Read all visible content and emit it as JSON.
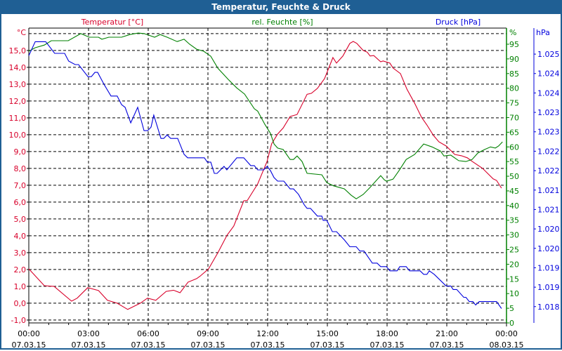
{
  "window": {
    "title": "Temperatur, Feuchte & Druck"
  },
  "colors": {
    "titlebar": "#1f5f94",
    "temperature": "#d8002a",
    "humidity": "#008000",
    "pressure": "#0000dd",
    "grid": "#000000"
  },
  "chart_data": {
    "type": "line",
    "title": "Temperatur, Feuchte & Druck",
    "x": {
      "label": "",
      "range_hours": [
        0,
        24
      ],
      "ticks": [
        {
          "h": 0,
          "time": "00:00",
          "date": "07.03.15"
        },
        {
          "h": 3,
          "time": "03:00",
          "date": "07.03.15"
        },
        {
          "h": 6,
          "time": "06:00",
          "date": "07.03.15"
        },
        {
          "h": 9,
          "time": "09:00",
          "date": "07.03.15"
        },
        {
          "h": 12,
          "time": "12:00",
          "date": "07.03.15"
        },
        {
          "h": 15,
          "time": "15:00",
          "date": "07.03.15"
        },
        {
          "h": 18,
          "time": "18:00",
          "date": "07.03.15"
        },
        {
          "h": 21,
          "time": "21:00",
          "date": "07.03.15"
        },
        {
          "h": 24,
          "time": "00:00",
          "date": "08.03.15"
        }
      ]
    },
    "axes": {
      "temperature": {
        "label": "Temperatur [°C]",
        "unit": "°C",
        "range": [
          -1.17,
          16.33
        ],
        "ticks": [
          {
            "v": -1,
            "t": "-1,0"
          },
          {
            "v": 0,
            "t": "0,0"
          },
          {
            "v": 1,
            "t": "1,0"
          },
          {
            "v": 2,
            "t": "2,0"
          },
          {
            "v": 3,
            "t": "3,0"
          },
          {
            "v": 4,
            "t": "4,0"
          },
          {
            "v": 5,
            "t": "5,0"
          },
          {
            "v": 6,
            "t": "6,0"
          },
          {
            "v": 7,
            "t": "7,0"
          },
          {
            "v": 8,
            "t": "8,0"
          },
          {
            "v": 9,
            "t": "9,0"
          },
          {
            "v": 10,
            "t": "10,0"
          },
          {
            "v": 11,
            "t": "11,0"
          },
          {
            "v": 12,
            "t": "12,0"
          },
          {
            "v": 13,
            "t": "13,0"
          },
          {
            "v": 14,
            "t": "14,0"
          },
          {
            "v": 15,
            "t": "15,0"
          }
        ]
      },
      "humidity": {
        "label": "rel. Feuchte [%]",
        "unit": "%",
        "range": [
          0,
          100.5
        ],
        "ticks": [
          {
            "v": 0,
            "t": "0"
          },
          {
            "v": 5,
            "t": "5"
          },
          {
            "v": 10,
            "t": "10"
          },
          {
            "v": 15,
            "t": "15"
          },
          {
            "v": 20,
            "t": "20"
          },
          {
            "v": 25,
            "t": "25"
          },
          {
            "v": 30,
            "t": "30"
          },
          {
            "v": 35,
            "t": "35"
          },
          {
            "v": 40,
            "t": "40"
          },
          {
            "v": 45,
            "t": "45"
          },
          {
            "v": 50,
            "t": "50"
          },
          {
            "v": 55,
            "t": "55"
          },
          {
            "v": 60,
            "t": "60"
          },
          {
            "v": 65,
            "t": "65"
          },
          {
            "v": 70,
            "t": "70"
          },
          {
            "v": 75,
            "t": "75"
          },
          {
            "v": 80,
            "t": "80"
          },
          {
            "v": 85,
            "t": "85"
          },
          {
            "v": 90,
            "t": "90"
          },
          {
            "v": 95,
            "t": "95"
          }
        ]
      },
      "pressure": {
        "label": "Druck [hPa]",
        "unit": "hPa",
        "range": [
          1.01808,
          1.02567
        ],
        "ticks": [
          {
            "v": 1.0185,
            "t": "1.018"
          },
          {
            "v": 1.019,
            "t": "1.019"
          },
          {
            "v": 1.0195,
            "t": "1.019"
          },
          {
            "v": 1.02,
            "t": "1.020"
          },
          {
            "v": 1.0205,
            "t": "1.020"
          },
          {
            "v": 1.021,
            "t": "1.021"
          },
          {
            "v": 1.0215,
            "t": "1.021"
          },
          {
            "v": 1.022,
            "t": "1.022"
          },
          {
            "v": 1.0225,
            "t": "1.022"
          },
          {
            "v": 1.023,
            "t": "1.023"
          },
          {
            "v": 1.0235,
            "t": "1.023"
          },
          {
            "v": 1.024,
            "t": "1.024"
          },
          {
            "v": 1.0245,
            "t": "1.024"
          },
          {
            "v": 1.025,
            "t": "1.025"
          }
        ]
      }
    },
    "grid": true,
    "series": [
      {
        "name": "Temperatur [°C]",
        "axis": "temperature",
        "color": "#d8002a",
        "points": [
          [
            0,
            2.04
          ],
          [
            0.78,
            1.04
          ],
          [
            1.27,
            1.0
          ],
          [
            2.15,
            0.12
          ],
          [
            2.43,
            0.3
          ],
          [
            2.96,
            0.92
          ],
          [
            3.5,
            0.75
          ],
          [
            3.95,
            0.17
          ],
          [
            4.44,
            0
          ],
          [
            4.97,
            -0.37
          ],
          [
            5.6,
            0
          ],
          [
            5.96,
            0.3
          ],
          [
            6.38,
            0.17
          ],
          [
            6.9,
            0.7
          ],
          [
            7.27,
            0.77
          ],
          [
            7.6,
            0.62
          ],
          [
            8.0,
            1.25
          ],
          [
            8.43,
            1.46
          ],
          [
            8.6,
            1.6
          ],
          [
            9.03,
            2.04
          ],
          [
            9.5,
            3.0
          ],
          [
            9.96,
            4.04
          ],
          [
            10.3,
            4.58
          ],
          [
            10.8,
            6.08
          ],
          [
            10.98,
            6.1
          ],
          [
            11.5,
            7.08
          ],
          [
            11.97,
            8.42
          ],
          [
            12.2,
            9.46
          ],
          [
            12.5,
            10.04
          ],
          [
            12.78,
            10.4
          ],
          [
            13.13,
            11.08
          ],
          [
            13.48,
            11.2
          ],
          [
            13.98,
            12.4
          ],
          [
            14.2,
            12.46
          ],
          [
            14.5,
            12.75
          ],
          [
            14.86,
            13.33
          ],
          [
            15.28,
            14.58
          ],
          [
            15.46,
            14.25
          ],
          [
            15.78,
            14.67
          ],
          [
            16.13,
            15.42
          ],
          [
            16.3,
            15.54
          ],
          [
            16.48,
            15.42
          ],
          [
            16.8,
            15.0
          ],
          [
            17.0,
            14.9
          ],
          [
            17.15,
            14.67
          ],
          [
            17.33,
            14.7
          ],
          [
            17.68,
            14.33
          ],
          [
            17.8,
            14.38
          ],
          [
            18.14,
            14.25
          ],
          [
            18.3,
            13.96
          ],
          [
            18.67,
            13.63
          ],
          [
            19.0,
            12.7
          ],
          [
            19.38,
            11.88
          ],
          [
            19.73,
            11.04
          ],
          [
            20.0,
            10.58
          ],
          [
            20.33,
            9.96
          ],
          [
            20.6,
            9.58
          ],
          [
            20.97,
            9.33
          ],
          [
            21.4,
            8.83
          ],
          [
            21.74,
            8.75
          ],
          [
            22.03,
            8.63
          ],
          [
            22.27,
            8.42
          ],
          [
            22.8,
            8.0
          ],
          [
            23.33,
            7.38
          ],
          [
            23.5,
            7.29
          ],
          [
            23.75,
            6.83
          ]
        ]
      },
      {
        "name": "rel. Feuchte [%]",
        "axis": "humidity",
        "color": "#008000",
        "points": [
          [
            0,
            92.6
          ],
          [
            0.32,
            93.8
          ],
          [
            0.78,
            94.7
          ],
          [
            1.13,
            96.2
          ],
          [
            1.73,
            96.2
          ],
          [
            1.98,
            96.2
          ],
          [
            2.61,
            98.6
          ],
          [
            3.04,
            97.4
          ],
          [
            3.5,
            97.4
          ],
          [
            3.67,
            96.7
          ],
          [
            4.02,
            97.4
          ],
          [
            4.66,
            97.4
          ],
          [
            5.08,
            98.3
          ],
          [
            5.5,
            98.8
          ],
          [
            5.8,
            98.6
          ],
          [
            6.32,
            97.4
          ],
          [
            6.6,
            98.3
          ],
          [
            6.95,
            97.4
          ],
          [
            7.45,
            95.9
          ],
          [
            7.8,
            96.7
          ],
          [
            8.08,
            95.0
          ],
          [
            8.43,
            93.3
          ],
          [
            8.79,
            92.6
          ],
          [
            9.14,
            90.9
          ],
          [
            9.5,
            86.8
          ],
          [
            10.02,
            83.0
          ],
          [
            10.45,
            80.1
          ],
          [
            10.84,
            78.0
          ],
          [
            11.33,
            73.0
          ],
          [
            11.5,
            72.2
          ],
          [
            11.86,
            67.7
          ],
          [
            12.14,
            64.6
          ],
          [
            12.32,
            61.0
          ],
          [
            12.5,
            59.6
          ],
          [
            12.78,
            59.1
          ],
          [
            13.13,
            55.7
          ],
          [
            13.3,
            55.7
          ],
          [
            13.48,
            56.9
          ],
          [
            13.73,
            55.0
          ],
          [
            13.98,
            51.0
          ],
          [
            14.72,
            50.5
          ],
          [
            14.97,
            47.8
          ],
          [
            15.32,
            46.7
          ],
          [
            15.85,
            45.7
          ],
          [
            16.2,
            43.5
          ],
          [
            16.45,
            42.3
          ],
          [
            16.8,
            43.8
          ],
          [
            17.15,
            46.2
          ],
          [
            17.68,
            50.2
          ],
          [
            17.86,
            48.8
          ],
          [
            17.97,
            48.3
          ],
          [
            18.3,
            49.0
          ],
          [
            18.6,
            51.9
          ],
          [
            18.96,
            55.7
          ],
          [
            19.38,
            57.4
          ],
          [
            19.84,
            61.0
          ],
          [
            20.26,
            60.0
          ],
          [
            20.68,
            58.6
          ],
          [
            20.86,
            56.9
          ],
          [
            21.2,
            57.2
          ],
          [
            21.6,
            55.3
          ],
          [
            21.96,
            55.0
          ],
          [
            22.27,
            55.7
          ],
          [
            22.56,
            57.9
          ],
          [
            22.9,
            59.1
          ],
          [
            23.2,
            60.0
          ],
          [
            23.44,
            59.6
          ],
          [
            23.6,
            60.3
          ],
          [
            23.8,
            61.7
          ]
        ]
      },
      {
        "name": "Druck [hPa]",
        "axis": "pressure",
        "color": "#0000dd",
        "points": [
          [
            0,
            1.02496
          ],
          [
            0.32,
            1.02532
          ],
          [
            0.85,
            1.02532
          ],
          [
            1.3,
            1.02502
          ],
          [
            1.8,
            1.02502
          ],
          [
            2.0,
            1.02482
          ],
          [
            2.33,
            1.02473
          ],
          [
            2.5,
            1.02473
          ],
          [
            2.97,
            1.02442
          ],
          [
            3.14,
            1.02442
          ],
          [
            3.32,
            1.02453
          ],
          [
            3.46,
            1.02453
          ],
          [
            3.78,
            1.02422
          ],
          [
            4.13,
            1.02392
          ],
          [
            4.44,
            1.02392
          ],
          [
            4.66,
            1.0237
          ],
          [
            4.84,
            1.02363
          ],
          [
            5.12,
            1.02323
          ],
          [
            5.47,
            1.02363
          ],
          [
            5.79,
            1.02303
          ],
          [
            5.97,
            1.02303
          ],
          [
            6.14,
            1.02312
          ],
          [
            6.28,
            1.02343
          ],
          [
            6.64,
            1.02283
          ],
          [
            6.78,
            1.02283
          ],
          [
            6.95,
            1.02292
          ],
          [
            7.13,
            1.02283
          ],
          [
            7.48,
            1.02283
          ],
          [
            7.8,
            1.02242
          ],
          [
            7.98,
            1.02233
          ],
          [
            8.43,
            1.02233
          ],
          [
            8.82,
            1.02233
          ],
          [
            8.97,
            1.02222
          ],
          [
            9.14,
            1.02222
          ],
          [
            9.32,
            1.02193
          ],
          [
            9.46,
            1.02193
          ],
          [
            9.81,
            1.02211
          ],
          [
            9.95,
            1.02202
          ],
          [
            10.45,
            1.02233
          ],
          [
            10.8,
            1.02233
          ],
          [
            11.15,
            1.02213
          ],
          [
            11.33,
            1.02213
          ],
          [
            11.5,
            1.02202
          ],
          [
            11.8,
            1.02202
          ],
          [
            11.97,
            1.02211
          ],
          [
            12.14,
            1.022
          ],
          [
            12.32,
            1.02182
          ],
          [
            12.5,
            1.02173
          ],
          [
            12.81,
            1.02173
          ],
          [
            13.13,
            1.02153
          ],
          [
            13.3,
            1.02153
          ],
          [
            13.55,
            1.02139
          ],
          [
            13.84,
            1.02112
          ],
          [
            13.98,
            1.02103
          ],
          [
            14.15,
            1.02103
          ],
          [
            14.5,
            1.02083
          ],
          [
            14.72,
            1.02083
          ],
          [
            14.79,
            1.02072
          ],
          [
            14.97,
            1.02072
          ],
          [
            15.25,
            1.02043
          ],
          [
            15.46,
            1.02043
          ],
          [
            15.85,
            1.02022
          ],
          [
            16.13,
            1.02004
          ],
          [
            16.45,
            1.02004
          ],
          [
            16.63,
            1.01993
          ],
          [
            16.84,
            1.01993
          ],
          [
            17.26,
            1.01962
          ],
          [
            17.5,
            1.01962
          ],
          [
            17.68,
            1.01953
          ],
          [
            17.97,
            1.01953
          ],
          [
            18.14,
            1.01942
          ],
          [
            18.5,
            1.01942
          ],
          [
            18.64,
            1.01953
          ],
          [
            18.96,
            1.01953
          ],
          [
            19.13,
            1.01942
          ],
          [
            19.66,
            1.01942
          ],
          [
            19.84,
            1.01933
          ],
          [
            20.0,
            1.01933
          ],
          [
            20.12,
            1.01942
          ],
          [
            20.37,
            1.01933
          ],
          [
            20.97,
            1.01903
          ],
          [
            21.2,
            1.01903
          ],
          [
            21.32,
            1.01894
          ],
          [
            21.5,
            1.01894
          ],
          [
            21.85,
            1.01874
          ],
          [
            21.96,
            1.01874
          ],
          [
            22.13,
            1.01863
          ],
          [
            22.31,
            1.01863
          ],
          [
            22.45,
            1.01854
          ],
          [
            22.63,
            1.01863
          ],
          [
            23.5,
            1.01863
          ],
          [
            23.75,
            1.01845
          ]
        ]
      }
    ]
  }
}
